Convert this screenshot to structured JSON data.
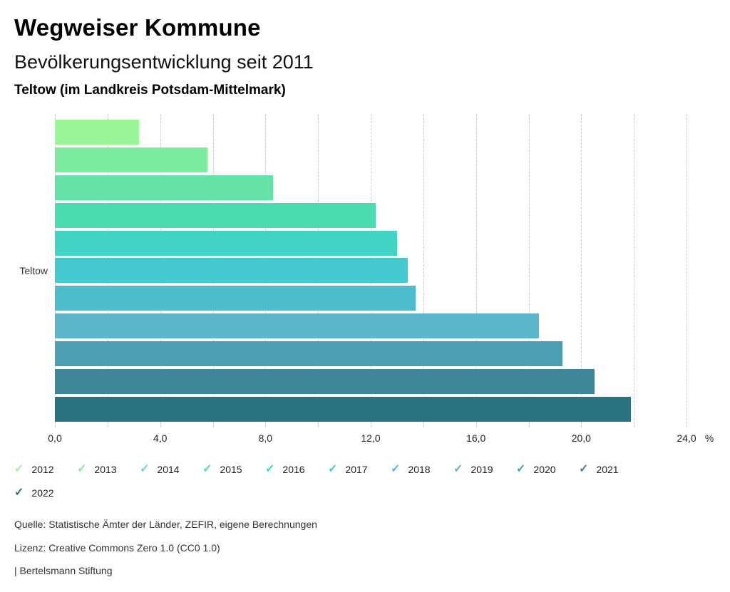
{
  "header": {
    "title": "Wegweiser Kommune",
    "subtitle": "Bevölkerungsentwicklung seit 2011",
    "location": "Teltow (im Landkreis Potsdam-Mittelmark)"
  },
  "chart_data": {
    "type": "bar",
    "orientation": "horizontal",
    "title": "Bevölkerungsentwicklung seit 2011",
    "group_label": "Teltow",
    "categories": [
      "2012",
      "2013",
      "2014",
      "2015",
      "2016",
      "2017",
      "2018",
      "2019",
      "2020",
      "2021",
      "2022"
    ],
    "values": [
      3.2,
      5.8,
      8.3,
      12.2,
      13.0,
      13.4,
      13.7,
      18.4,
      19.3,
      20.5,
      21.9
    ],
    "colors": [
      "#98F598",
      "#7EEC9F",
      "#65E3A7",
      "#4CDBB0",
      "#41D4C5",
      "#43C9CE",
      "#4DBCCC",
      "#5BB6CB",
      "#4C9FB1",
      "#3D8799",
      "#2A7383"
    ],
    "xlim": [
      0,
      24
    ],
    "grid_step": 2,
    "grid_color": "#c9c9c9",
    "x_tick_values": [
      0,
      4,
      8,
      12,
      16,
      20,
      24
    ],
    "x_tick_labels": [
      "0,0",
      "4,0",
      "8,0",
      "12,0",
      "16,0",
      "20,0",
      "24,0"
    ],
    "x_unit": "%",
    "legend_position": "bottom",
    "grid": "vertical-dashed"
  },
  "legend": {
    "check_glyph": "✓"
  },
  "footer": {
    "source": "Quelle: Statistische Ämter der Länder, ZEFIR, eigene Berechnungen",
    "license": "Lizenz: Creative Commons Zero 1.0 (CC0 1.0)",
    "attribution": "| Bertelsmann Stiftung"
  }
}
